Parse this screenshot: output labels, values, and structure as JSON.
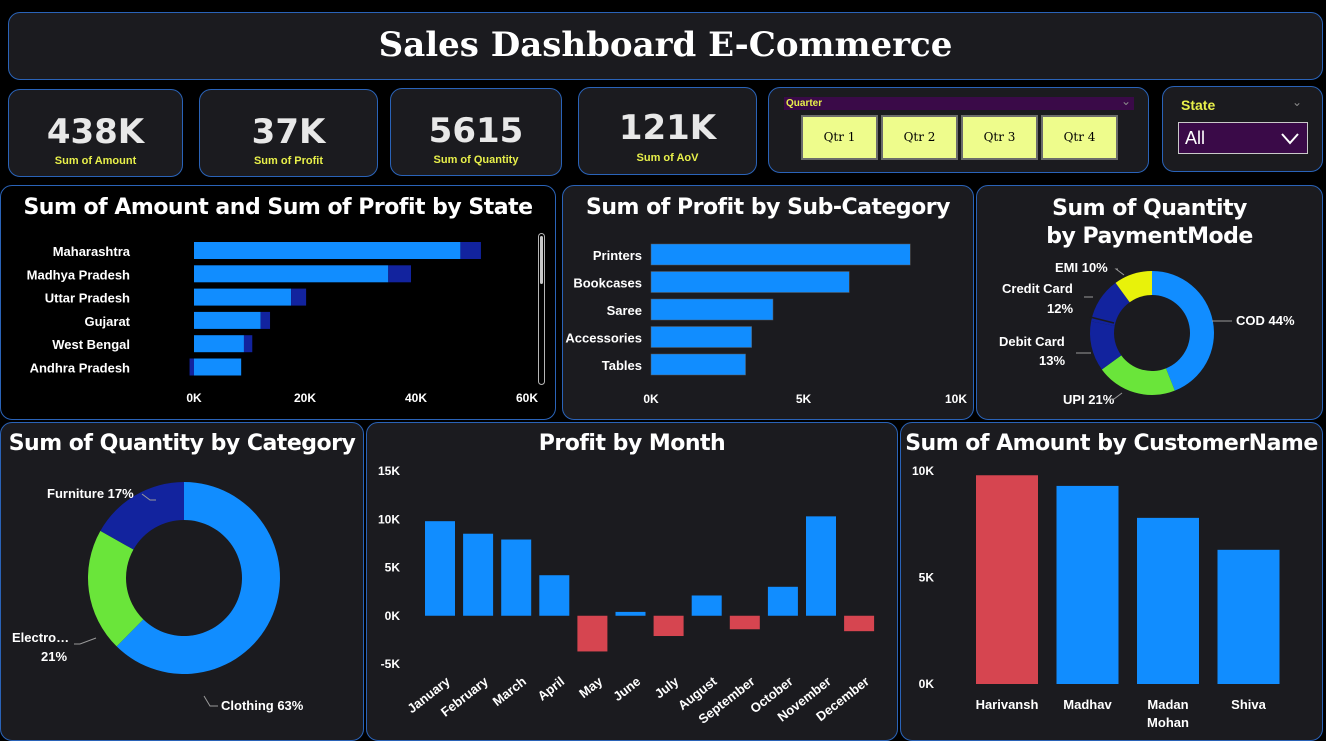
{
  "header": {
    "title": "Sales Dashboard E-Commerce"
  },
  "kpis": [
    {
      "value": "438K",
      "label": "Sum of Amount"
    },
    {
      "value": "37K",
      "label": "Sum of Profit"
    },
    {
      "value": "5615",
      "label": "Sum of Quantity"
    },
    {
      "value": "121K",
      "label": "Sum of AoV"
    }
  ],
  "quarter_slicer": {
    "label": "Quarter",
    "options": [
      "Qtr 1",
      "Qtr 2",
      "Qtr 3",
      "Qtr 4"
    ]
  },
  "state_slicer": {
    "label": "State",
    "selected": "All"
  },
  "colors": {
    "primary": "#118dff",
    "secondary": "#12239e",
    "negative": "#d64550",
    "green": "#6ae53a",
    "yellow": "#e8f20a",
    "accent_yellow_text": "#e8f04a",
    "panel_bg": "#1b1b1f",
    "panel_border": "#2a63b8",
    "slicer_button": "#eefc8c",
    "slicer_purple": "#3a0a48"
  },
  "icons": {
    "chevron": "chevron-down-icon"
  },
  "chart_data": [
    {
      "type": "bar",
      "orientation": "horizontal",
      "title": "Sum of Amount and Sum of Profit by State",
      "categories": [
        "Maharashtra",
        "Madhya Pradesh",
        "Uttar Pradesh",
        "Gujarat",
        "West Bengal",
        "Andhra Pradesh"
      ],
      "series": [
        {
          "name": "Sum of Amount",
          "values": [
            48000,
            35000,
            17500,
            12000,
            9000,
            8500
          ]
        },
        {
          "name": "Sum of Profit",
          "values": [
            3700,
            4100,
            2700,
            1700,
            1500,
            -800
          ]
        }
      ],
      "xlim": [
        0,
        60000
      ],
      "xticks": [
        "0K",
        "20K",
        "40K",
        "60K"
      ]
    },
    {
      "type": "bar",
      "orientation": "horizontal",
      "title": "Sum of Profit by Sub-Category",
      "categories": [
        "Printers",
        "Bookcases",
        "Saree",
        "Accessories",
        "Tables"
      ],
      "values": [
        8500,
        6500,
        4000,
        3300,
        3100
      ],
      "xlim": [
        0,
        10000
      ],
      "xticks": [
        "0K",
        "5K",
        "10K"
      ]
    },
    {
      "type": "pie",
      "donut": true,
      "title": "Sum of Quantity by PaymentMode",
      "slices": [
        {
          "label": "COD",
          "value": 44,
          "display": "COD 44%"
        },
        {
          "label": "UPI",
          "value": 21,
          "display": "UPI 21%"
        },
        {
          "label": "Debit Card",
          "value": 13,
          "display": "Debit Card 13%"
        },
        {
          "label": "Credit Card",
          "value": 12,
          "display": "Credit Card 12%"
        },
        {
          "label": "EMI",
          "value": 10,
          "display": "EMI 10%"
        }
      ]
    },
    {
      "type": "pie",
      "donut": true,
      "title": "Sum of Quantity by Category",
      "slices": [
        {
          "label": "Clothing",
          "value": 63,
          "display": "Clothing 63%"
        },
        {
          "label": "Electronics",
          "value": 21,
          "display": "Electro… 21%"
        },
        {
          "label": "Furniture",
          "value": 17,
          "display": "Furniture 17%"
        }
      ]
    },
    {
      "type": "bar",
      "title": "Profit by Month",
      "categories": [
        "January",
        "February",
        "March",
        "April",
        "May",
        "June",
        "July",
        "August",
        "September",
        "October",
        "November",
        "December"
      ],
      "values": [
        9800,
        8500,
        7900,
        4200,
        -3700,
        400,
        -2100,
        2100,
        -1400,
        3000,
        10300,
        -1600
      ],
      "ylim": [
        -5000,
        15000
      ],
      "yticks": [
        "15K",
        "10K",
        "5K",
        "0K",
        "-5K"
      ]
    },
    {
      "type": "bar",
      "title": "Sum of Amount by CustomerName",
      "categories": [
        "Harivansh",
        "Madhav",
        "Madan Mohan",
        "Shiva"
      ],
      "category_lines": [
        [
          "Harivansh"
        ],
        [
          "Madhav"
        ],
        [
          "Madan",
          "Mohan"
        ],
        [
          "Shiva"
        ]
      ],
      "values": [
        9800,
        9300,
        7800,
        6300
      ],
      "highlight": "Harivansh",
      "ylim": [
        0,
        10000
      ],
      "yticks": [
        "10K",
        "5K",
        "0K"
      ]
    }
  ]
}
